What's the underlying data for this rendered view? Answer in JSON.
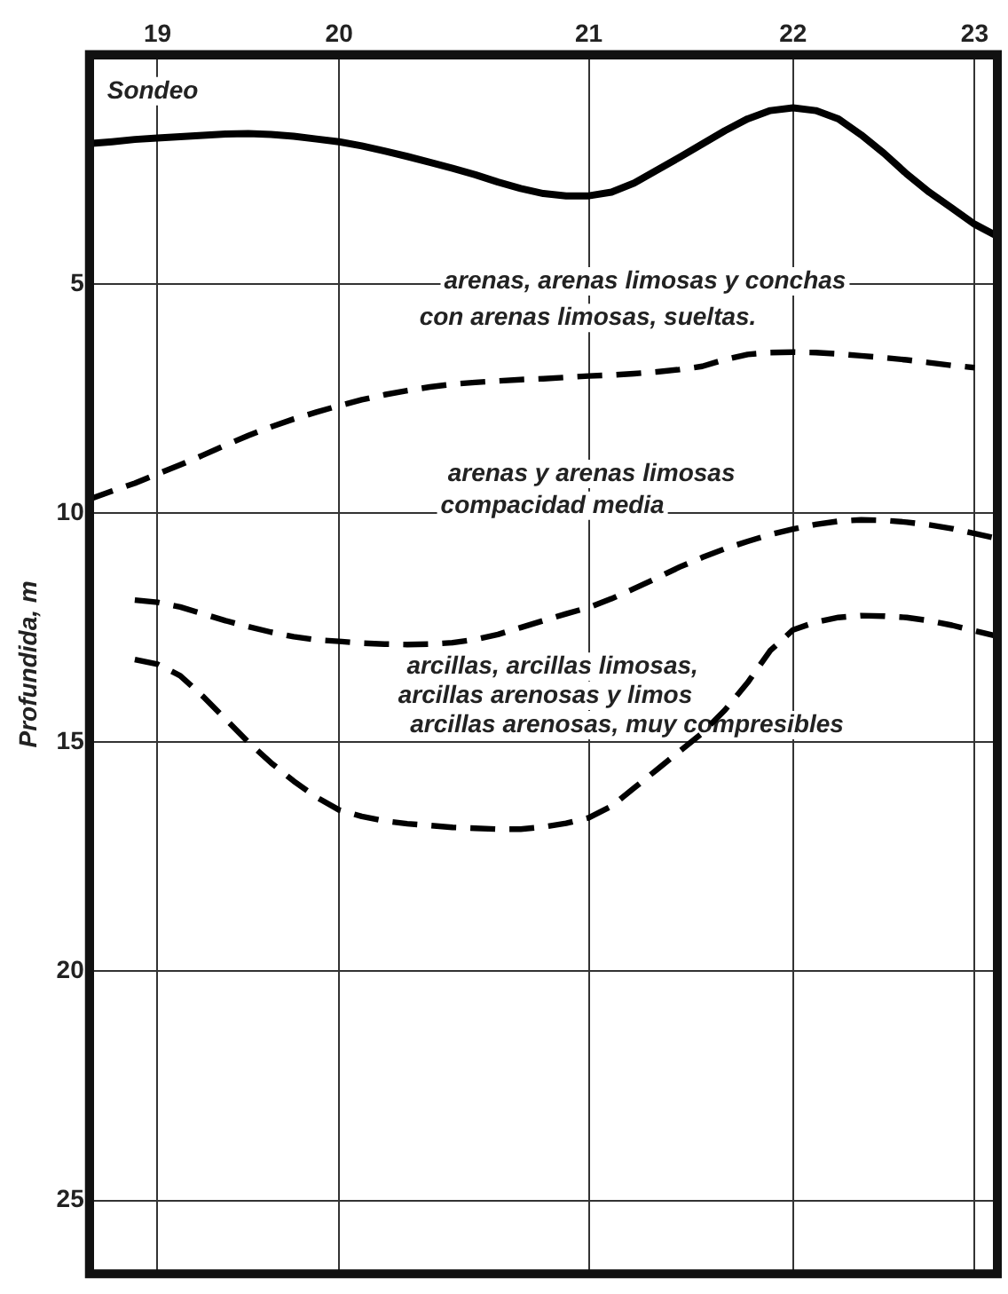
{
  "chart_data": {
    "type": "line",
    "ylabel": "Profundida, m",
    "categories": [
      null,
      null,
      null,
      "19",
      null,
      null,
      null,
      null,
      null,
      null,
      null,
      "20",
      null,
      null,
      null,
      null,
      null,
      null,
      null,
      null,
      null,
      null,
      "21",
      null,
      null,
      null,
      null,
      null,
      null,
      null,
      null,
      "22",
      null,
      null,
      null,
      null,
      null,
      null,
      null,
      "23",
      null
    ],
    "ylim": [
      26.6,
      0
    ],
    "yticks": [
      5,
      10,
      15,
      20,
      25
    ],
    "grid": true,
    "legend": false,
    "marker": "none",
    "series": [
      {
        "color": "#000000",
        "line_style": "solid",
        "values": [
          1.94,
          1.9,
          1.85,
          1.82,
          1.79,
          1.76,
          1.73,
          1.72,
          1.74,
          1.78,
          1.84,
          1.9,
          1.99,
          2.1,
          2.22,
          2.35,
          2.48,
          2.62,
          2.78,
          2.92,
          3.03,
          3.08,
          3.08,
          3.0,
          2.8,
          2.52,
          2.24,
          1.95,
          1.66,
          1.4,
          1.22,
          1.16,
          1.22,
          1.4,
          1.75,
          2.15,
          2.6,
          3.0,
          3.35,
          3.7,
          3.96
        ]
      },
      {
        "color": "#000000",
        "line_style": "dashed",
        "values": [
          9.7,
          9.52,
          9.35,
          9.15,
          8.95,
          8.74,
          8.52,
          8.31,
          8.12,
          7.95,
          7.8,
          7.66,
          7.53,
          7.42,
          7.33,
          7.25,
          7.19,
          7.15,
          7.12,
          7.09,
          7.07,
          7.04,
          7.01,
          6.99,
          6.96,
          6.92,
          6.87,
          6.8,
          6.65,
          6.54,
          6.5,
          6.49,
          6.5,
          6.53,
          6.57,
          6.61,
          6.66,
          6.72,
          6.78,
          6.83,
          null
        ]
      },
      {
        "color": "#000000",
        "line_style": "dashed",
        "values": [
          null,
          null,
          11.9,
          11.95,
          12.05,
          12.2,
          12.35,
          12.48,
          12.6,
          12.7,
          12.77,
          12.8,
          12.84,
          12.86,
          12.87,
          12.86,
          12.83,
          12.76,
          12.65,
          12.5,
          12.35,
          12.2,
          12.06,
          11.87,
          11.65,
          11.42,
          11.18,
          10.97,
          10.78,
          10.62,
          10.47,
          10.35,
          10.25,
          10.18,
          10.15,
          10.16,
          10.2,
          10.26,
          10.34,
          10.45,
          10.56
        ]
      },
      {
        "color": "#000000",
        "line_style": "dashed",
        "values": [
          null,
          null,
          13.2,
          13.3,
          13.55,
          14.0,
          14.5,
          15.0,
          15.45,
          15.85,
          16.2,
          16.48,
          16.62,
          16.72,
          16.78,
          16.82,
          16.86,
          16.88,
          16.9,
          16.9,
          16.85,
          16.77,
          16.65,
          16.4,
          16.0,
          15.6,
          15.2,
          14.8,
          14.3,
          13.7,
          13.0,
          12.55,
          12.38,
          12.28,
          12.24,
          12.25,
          12.28,
          12.35,
          12.45,
          12.57,
          12.69
        ]
      }
    ],
    "annotations": [
      "Sondeo",
      "arenas, arenas limosas y conchas",
      "con arenas limosas, sueltas.",
      "arenas y arenas limosas",
      "compacidad media",
      "arcillas, arcillas limosas,",
      "arcillas arenosas y limos",
      "arcillas arenosas, muy compresibles"
    ]
  }
}
